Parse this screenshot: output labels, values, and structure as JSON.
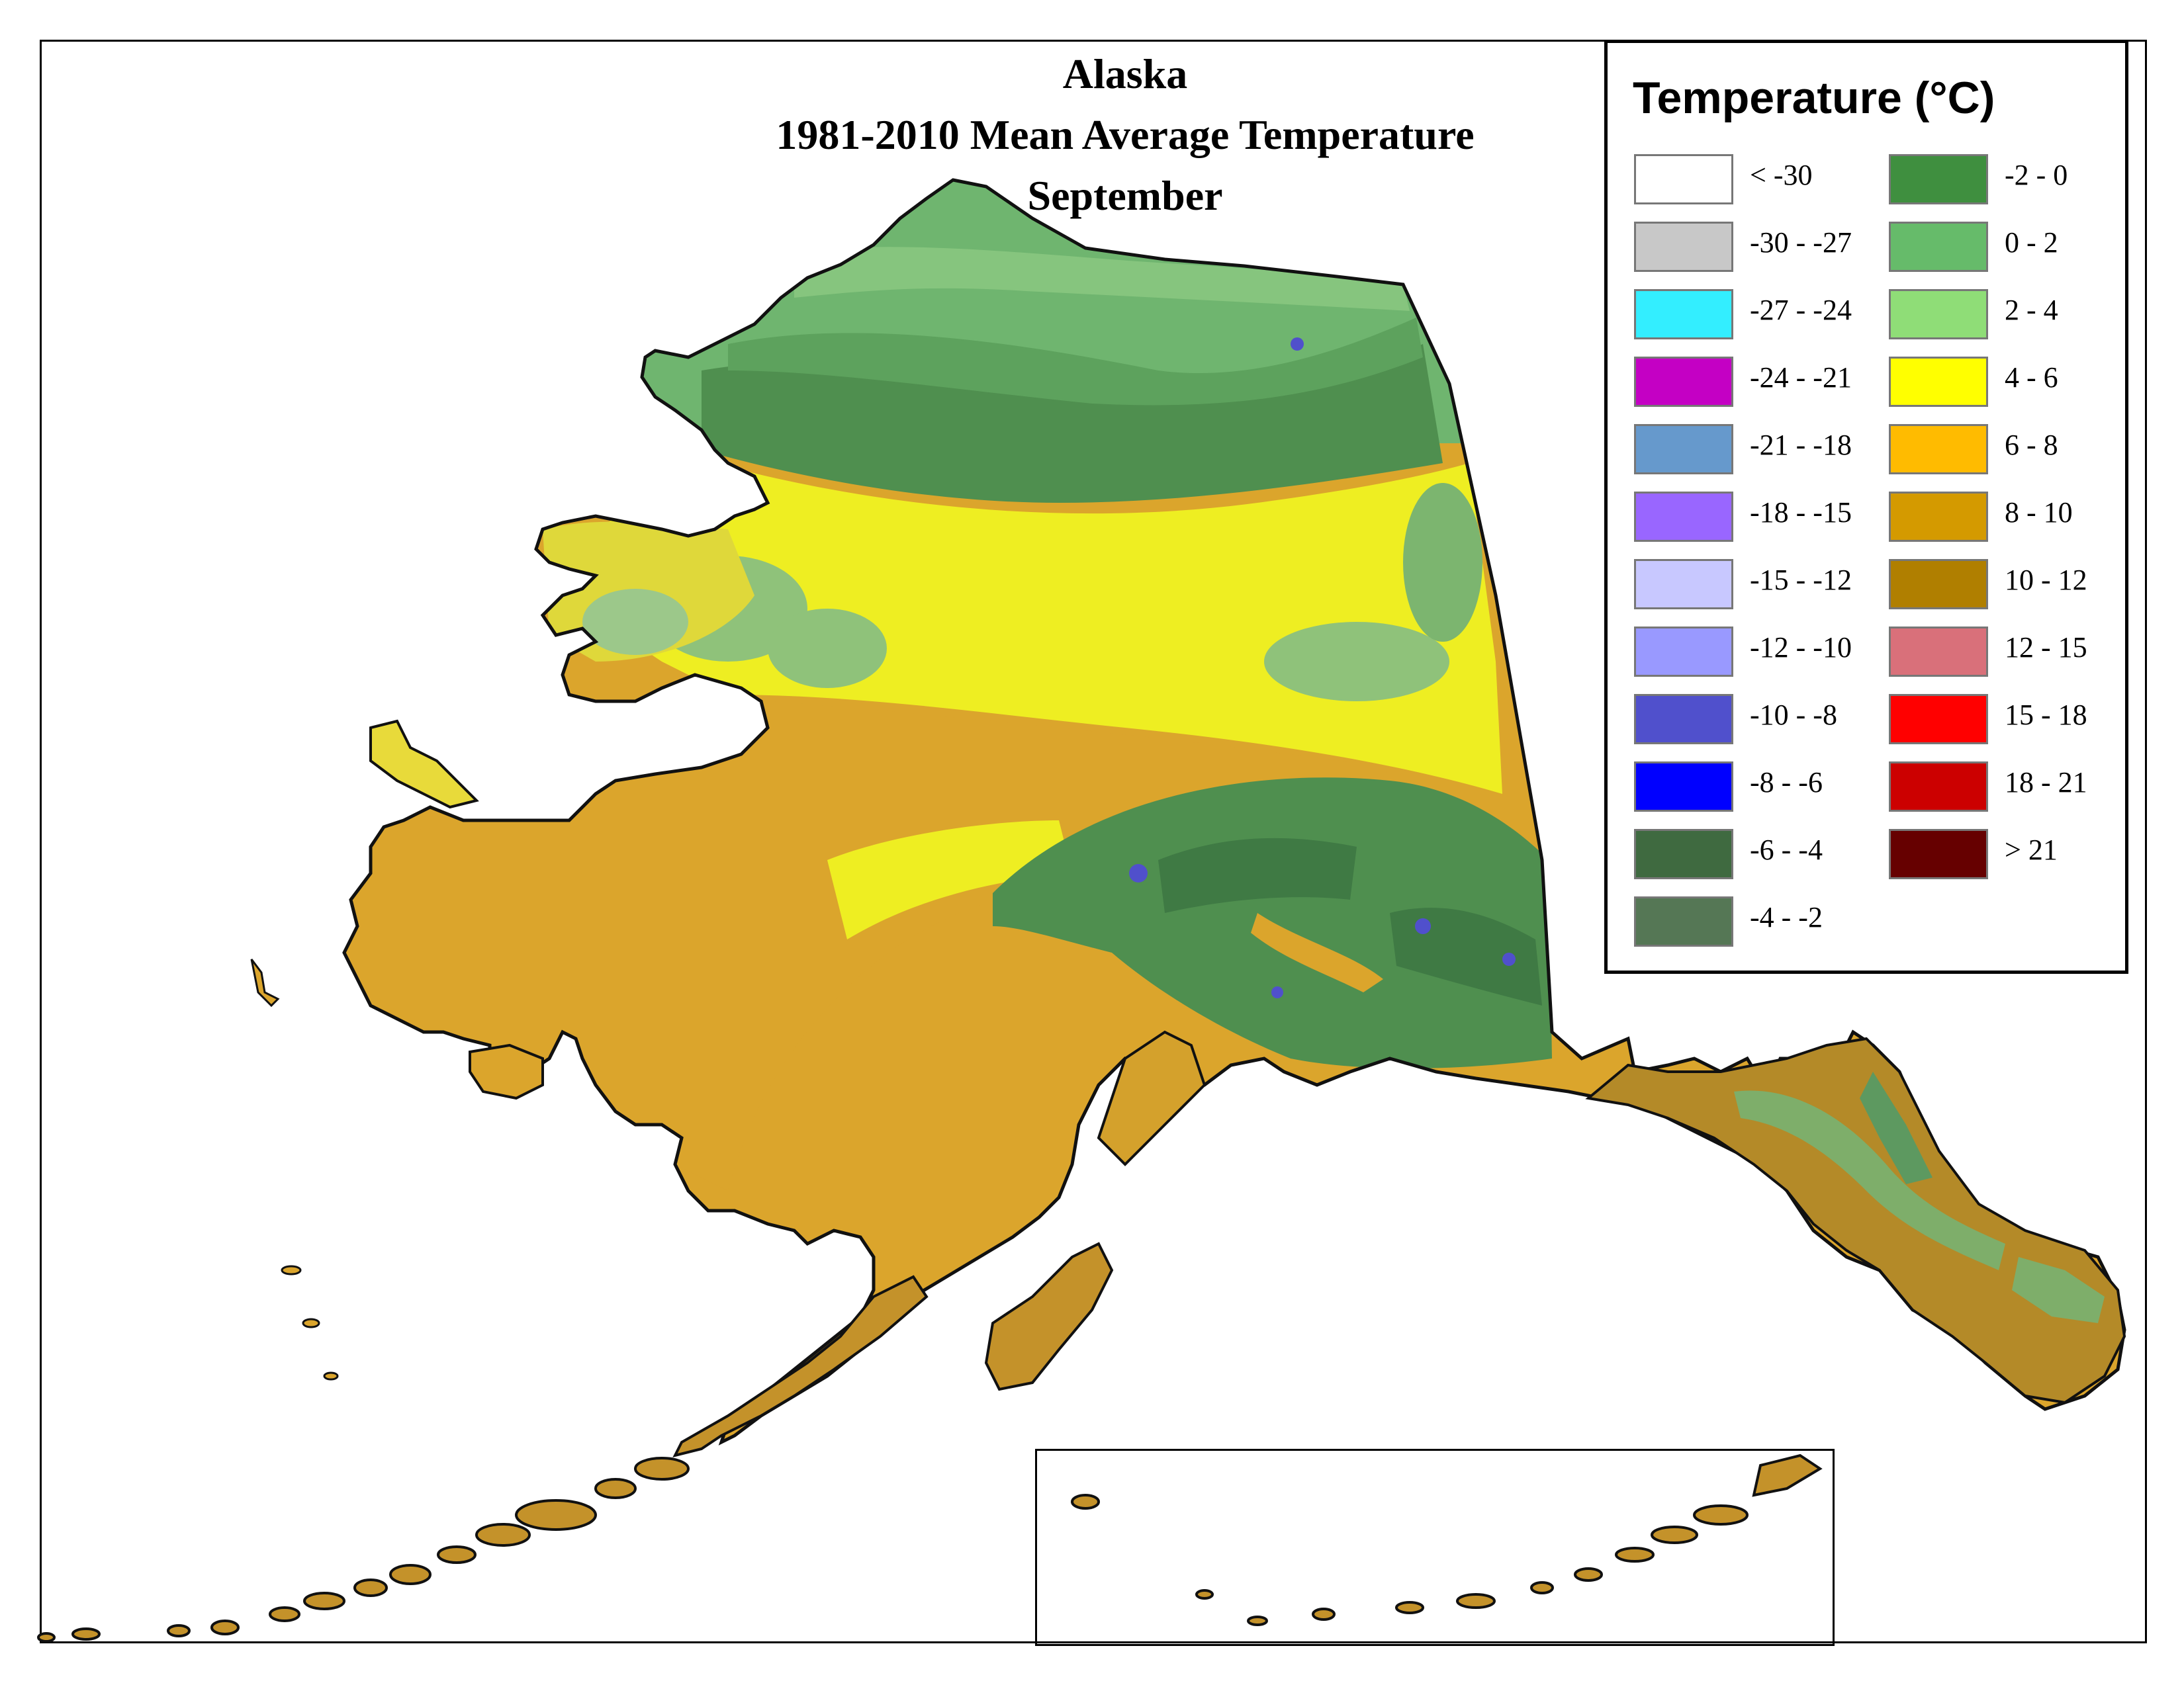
{
  "title": {
    "line1": "Alaska",
    "line2": "1981-2010 Mean Average Temperature",
    "line3": "September"
  },
  "legend": {
    "title": "Temperature (°C)",
    "left_column": [
      {
        "label": "< -30",
        "color": "#ffffff"
      },
      {
        "label": "-30 - -27",
        "color": "#c8c8c8"
      },
      {
        "label": "-27 - -24",
        "color": "#33eeff"
      },
      {
        "label": "-24 - -21",
        "color": "#c400c4"
      },
      {
        "label": "-21 - -18",
        "color": "#6699cc"
      },
      {
        "label": "-18 - -15",
        "color": "#9966ff"
      },
      {
        "label": "-15 - -12",
        "color": "#c8c8ff"
      },
      {
        "label": "-12 - -10",
        "color": "#9999ff"
      },
      {
        "label": "-10 - -8",
        "color": "#5050cc"
      },
      {
        "label": "-8 - -6",
        "color": "#0000ff"
      },
      {
        "label": "-6 - -4",
        "color": "#3f6a40"
      },
      {
        "label": "-4 - -2",
        "color": "#557755"
      }
    ],
    "right_column": [
      {
        "label": "-2 - 0",
        "color": "#3f8f3f"
      },
      {
        "label": "0 - 2",
        "color": "#66bb6a"
      },
      {
        "label": "2 - 4",
        "color": "#8fdd77"
      },
      {
        "label": "4 - 6",
        "color": "#ffff00"
      },
      {
        "label": "6 - 8",
        "color": "#ffbb00"
      },
      {
        "label": "8 - 10",
        "color": "#d49a00"
      },
      {
        "label": "10 - 12",
        "color": "#b07f00"
      },
      {
        "label": "12 - 15",
        "color": "#d9707a"
      },
      {
        "label": "15 - 18",
        "color": "#ff0000"
      },
      {
        "label": "18 - 21",
        "color": "#cc0000"
      },
      {
        "label": "> 21",
        "color": "#660000"
      }
    ]
  },
  "map": {
    "region": "Alaska",
    "colors": {
      "north_slope": "#6fb56f",
      "brooks_range": "#3f8f3f",
      "interior": "#eeee22",
      "southwest": "#dba52c",
      "alaska_range": "#4f8f4f",
      "southeast": "#b48a28",
      "coast": "#111111"
    }
  }
}
